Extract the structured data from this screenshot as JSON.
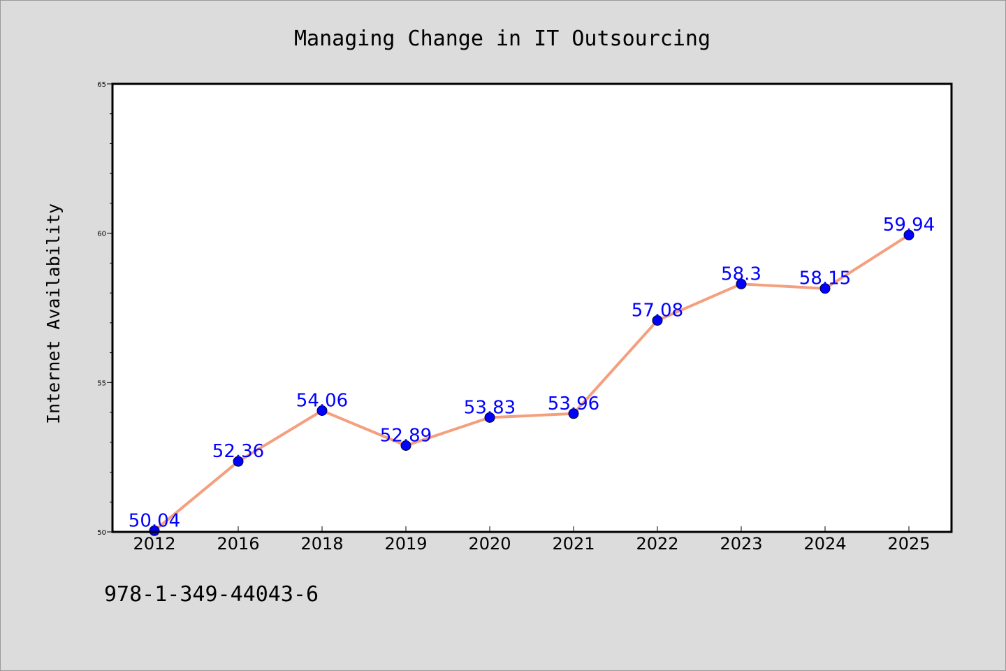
{
  "chart_data": {
    "type": "line",
    "title": "Managing Change in IT Outsourcing",
    "xlabel": "",
    "ylabel": "Internet Availability",
    "categories": [
      "2012",
      "2016",
      "2018",
      "2019",
      "2020",
      "2021",
      "2022",
      "2023",
      "2024",
      "2025"
    ],
    "series": [
      {
        "values": [
          50.04,
          52.36,
          54.06,
          52.89,
          53.83,
          53.96,
          57.08,
          58.3,
          58.15,
          59.94
        ],
        "data_labels": [
          "50.04",
          "52.36",
          "54.06",
          "52.89",
          "53.83",
          "53.96",
          "57.08",
          "58.3",
          "58.15",
          "59.94"
        ]
      }
    ],
    "ylim": [
      50,
      65
    ],
    "y_major_ticks": [
      50,
      55,
      60,
      65
    ],
    "y_tick_labels": [
      "50",
      "55",
      "60",
      "65"
    ],
    "y_minor_step": 1,
    "grid": false,
    "legend": "none",
    "colors": {
      "line": "#f4a07e",
      "marker": "#0000ff",
      "data_label": "#0000ff",
      "background": "#dcdcdc",
      "plot_background": "#ffffff"
    }
  },
  "footer": {
    "isbn": "978-1-349-44043-6"
  }
}
